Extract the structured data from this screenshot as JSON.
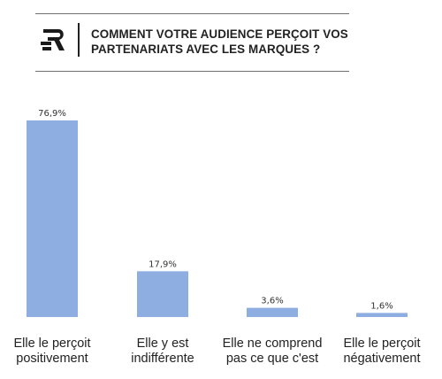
{
  "header": {
    "logo": "r-logo-icon",
    "title_line1": "COMMENT VOTRE AUDIENCE PERÇOIT VOS",
    "title_line2": "PARTENARIATS AVEC LES MARQUES ?"
  },
  "chart_data": {
    "type": "bar",
    "title": "COMMENT VOTRE AUDIENCE PERÇOIT VOS PARTENARIATS AVEC LES MARQUES ?",
    "categories": [
      [
        "Elle le perçoit",
        "positivement"
      ],
      [
        "Elle y est",
        "indifférente"
      ],
      [
        "Elle ne comprend",
        "pas ce que c'est"
      ],
      [
        "Elle le perçoit",
        "négativement"
      ]
    ],
    "values": [
      76.9,
      17.9,
      3.6,
      1.6
    ],
    "value_labels": [
      "76,9%",
      "17,9%",
      "3,6%",
      "1,6%"
    ],
    "ylim": [
      0,
      76.9
    ],
    "bar_color": "#8eaee2",
    "grid": false,
    "legend": "none"
  }
}
